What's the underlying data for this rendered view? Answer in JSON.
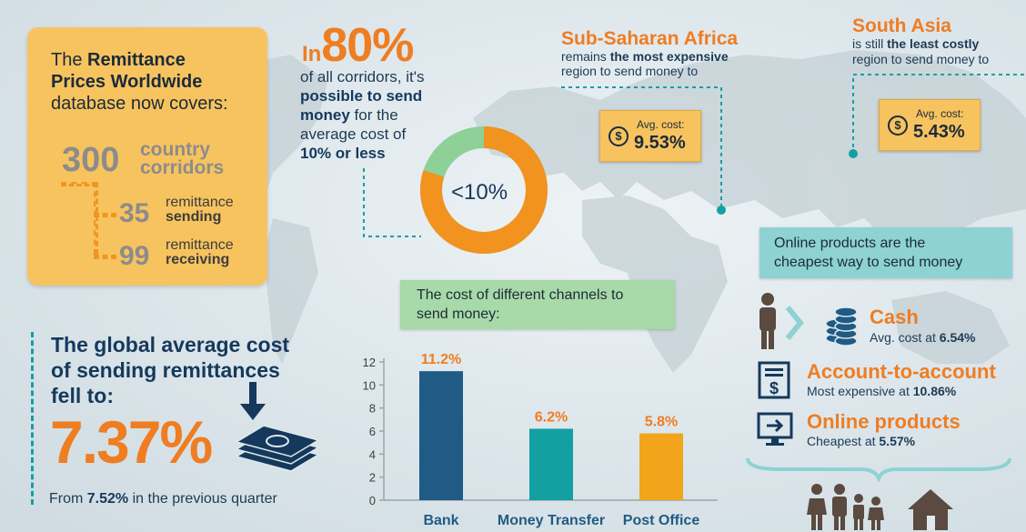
{
  "database": {
    "line1_prefix": "The",
    "line1_bold": "Remittance",
    "line2_bold": "Prices Worldwide",
    "line3": "database now covers:",
    "corridors_value": "300",
    "corridors_l1": "country",
    "corridors_l2": "corridors",
    "sending_value": "35",
    "sending_l1": "remittance",
    "sending_l2": "sending",
    "receiving_value": "99",
    "receiving_l1": "remittance",
    "receiving_l2": "receiving"
  },
  "corridors_block": {
    "in": "In",
    "pct": "80%",
    "line1": "of all corridors, it's",
    "line2_bold": "possible to send",
    "line3_bold": "money",
    "line3_rest": " for the",
    "line4": "average cost of",
    "line5_bold": "10% or less",
    "donut_label": "<10%",
    "donut_share_pct": 80
  },
  "ssa": {
    "title": "Sub-Saharan Africa",
    "d1_pre": "remains",
    "d1_bold": "the most expensive",
    "d2": "region to send money to",
    "avg_label": "Avg. cost:",
    "avg_value": "9.53%"
  },
  "south_asia": {
    "title": "South Asia",
    "d1_pre": "is still",
    "d1_bold": "the least costly",
    "d2": "region to send money to",
    "avg_label": "Avg. cost:",
    "avg_value": "5.43%"
  },
  "global": {
    "line1": "The global average cost",
    "line2": "of sending remittances",
    "line3": "fell to:",
    "value": "7.37%",
    "from_pre": "From",
    "from_bold": "7.52%",
    "from_post": "in the previous quarter"
  },
  "online": {
    "banner_l1": "Online products are the",
    "banner_l2": "cheapest way to send money",
    "cash_title": "Cash",
    "cash_pre": "Avg. cost at",
    "cash_val": "6.54%",
    "a2a_title": "Account-to-account",
    "a2a_pre": "Most expensive at",
    "a2a_val": "10.86%",
    "onl_title": "Online products",
    "onl_pre": "Cheapest at",
    "onl_val": "5.57%"
  },
  "chart_title_l1": "The cost of different channels to",
  "chart_title_l2": "send money:",
  "colors": {
    "orange": "#ef7d22",
    "navy": "#15395c",
    "teal": "#13a0a3",
    "gold": "#f7c35f",
    "bank": "#1f5b84",
    "money": "#13a0a3",
    "post": "#f2a51a"
  },
  "chart_data": {
    "type": "bar",
    "categories": [
      "Bank",
      "Money Transfer",
      "Post Office"
    ],
    "values": [
      11.2,
      6.2,
      5.8
    ],
    "value_labels": [
      "11.2%",
      "6.2%",
      "5.8%"
    ],
    "yticks": [
      0,
      2,
      4,
      6,
      8,
      10,
      12
    ],
    "ylim": [
      0,
      12
    ],
    "title": "",
    "xlabel": "",
    "ylabel": "",
    "grid": false
  }
}
